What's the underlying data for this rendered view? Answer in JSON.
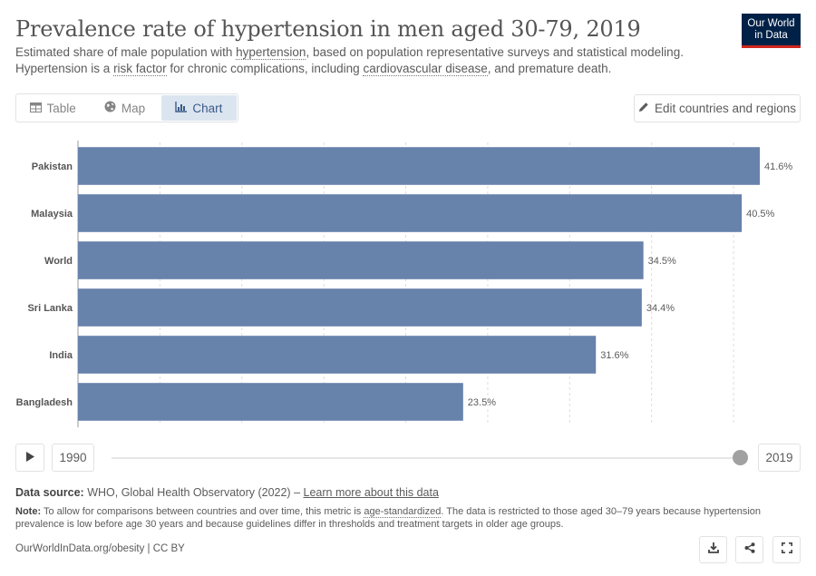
{
  "header": {
    "title": "Prevalence rate of hypertension in men aged 30-79, 2019",
    "subtitle_pre": "Estimated share of male population with ",
    "subtitle_link1": "hypertension",
    "subtitle_mid1": ", based on population representative surveys and statistical modeling. Hypertension is a ",
    "subtitle_link2": "risk factor",
    "subtitle_mid2": " for chronic complications, including ",
    "subtitle_link3": "cardiovascular disease",
    "subtitle_post": ", and premature death."
  },
  "logo": {
    "line1": "Our World",
    "line2": "in Data",
    "bg_color": "#002147",
    "accent_color": "#ce261e"
  },
  "tabs": [
    {
      "label": "Table",
      "icon": "table-icon"
    },
    {
      "label": "Map",
      "icon": "globe-icon"
    },
    {
      "label": "Chart",
      "icon": "chart-icon",
      "active": true
    }
  ],
  "edit_button": {
    "label": "Edit countries and regions",
    "icon": "pencil-icon"
  },
  "chart_data": {
    "type": "bar",
    "orientation": "horizontal",
    "categories": [
      "Pakistan",
      "Malaysia",
      "World",
      "Sri Lanka",
      "India",
      "Bangladesh"
    ],
    "values": [
      41.6,
      40.5,
      34.5,
      34.4,
      31.6,
      23.5
    ],
    "value_labels": [
      "41.6%",
      "40.5%",
      "34.5%",
      "34.4%",
      "31.6%",
      "23.5%"
    ],
    "unit": "%",
    "xlim": [
      0,
      41.6
    ],
    "grid": true,
    "bar_color": "#6782ab"
  },
  "timeline": {
    "start_year": "1990",
    "end_year": "2019",
    "selected": "2019"
  },
  "source": {
    "label": "Data source:",
    "text": " WHO, Global Health Observatory (2022) – ",
    "link": "Learn more about this data"
  },
  "note": {
    "label": "Note:",
    "pre": " To allow for comparisons between countries and over time, this metric is ",
    "link": "age-standardized",
    "post": ". The data is restricted to those aged 30–79 years because hypertension prevalence is low before age 30 years and because guidelines differ in thresholds and treatment targets in older age groups."
  },
  "footer": {
    "link": "OurWorldInData.org/obesity | CC BY"
  },
  "actions": [
    {
      "name": "download-button",
      "icon": "download-icon"
    },
    {
      "name": "share-button",
      "icon": "share-icon"
    },
    {
      "name": "fullscreen-button",
      "icon": "fullscreen-icon"
    }
  ]
}
